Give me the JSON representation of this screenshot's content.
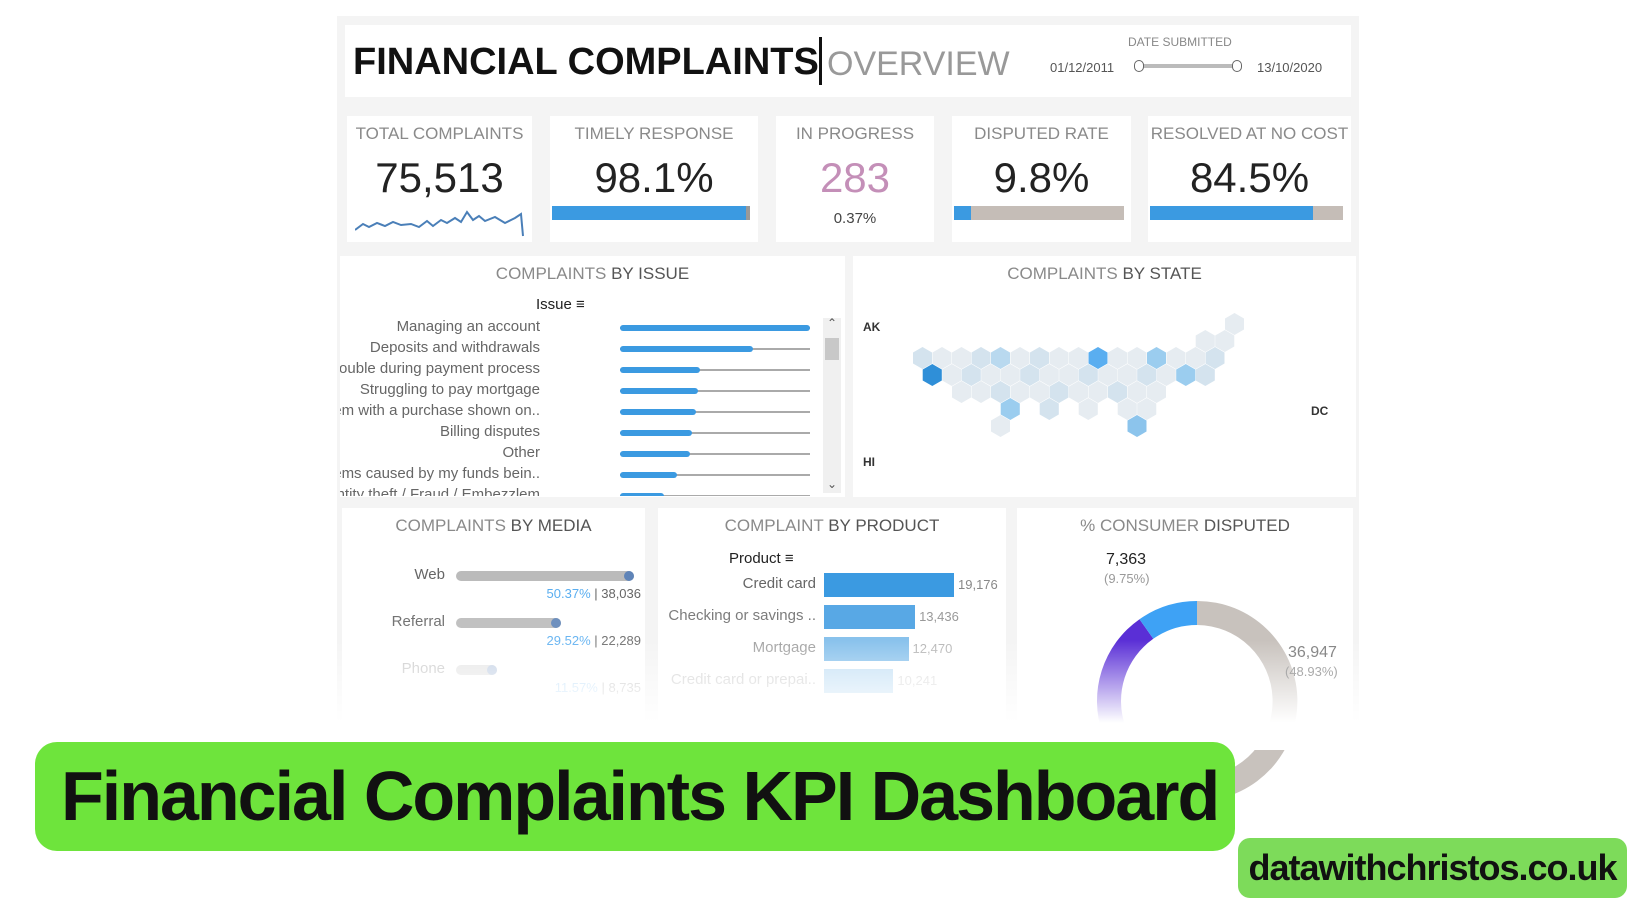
{
  "header": {
    "title": "FINANCIAL COMPLAINTS",
    "subtitle": "OVERVIEW",
    "date_filter": {
      "label": "DATE SUBMITTED",
      "start": "01/12/2011",
      "end": "13/10/2020"
    }
  },
  "kpis": [
    {
      "title": "TOTAL COMPLAINTS",
      "value": "75,513"
    },
    {
      "title": "TIMELY RESPONSE",
      "value": "98.1%",
      "bar_fraction": 0.981
    },
    {
      "title": "IN PROGRESS",
      "value": "283",
      "sub": "0.37%",
      "value_color": "#c48fb8"
    },
    {
      "title": "DISPUTED RATE",
      "value": "9.8%",
      "bar_fraction": 0.098
    },
    {
      "title": "RESOLVED AT NO COST",
      "value": "84.5%",
      "bar_fraction": 0.845
    }
  ],
  "issues": {
    "title_a": "COMPLAINTS",
    "title_b": "BY ISSUE",
    "header": "Issue",
    "rows": [
      {
        "label": "Managing an account",
        "fraction": 1.0
      },
      {
        "label": "Deposits and withdrawals",
        "fraction": 0.7
      },
      {
        "label": "Trouble during payment process",
        "fraction": 0.42
      },
      {
        "label": "Struggling to pay mortgage",
        "fraction": 0.41
      },
      {
        "label": "Problem with a purchase shown on..",
        "fraction": 0.4
      },
      {
        "label": "Billing disputes",
        "fraction": 0.38
      },
      {
        "label": "Other",
        "fraction": 0.37
      },
      {
        "label": "Problems caused by my funds bein..",
        "fraction": 0.3
      },
      {
        "label": "Identity theft / Fraud / Embezzlem",
        "fraction": 0.23
      }
    ]
  },
  "states": {
    "title_a": "COMPLAINTS",
    "title_b": "BY STATE",
    "labels": [
      "AK",
      "HI",
      "DC"
    ]
  },
  "media": {
    "title_a": "COMPLAINTS",
    "title_b": "BY MEDIA",
    "rows": [
      {
        "label": "Web",
        "pct": "50.37%",
        "count": "38,036",
        "fraction": 1.0
      },
      {
        "label": "Referral",
        "pct": "29.52%",
        "count": "22,289",
        "fraction": 0.59
      },
      {
        "label": "Phone",
        "pct": "11.57%",
        "count": "8,735",
        "fraction": 0.23
      }
    ]
  },
  "product": {
    "title_a": "COMPLAINT",
    "title_b": "BY PRODUCT",
    "header": "Product",
    "rows": [
      {
        "label": "Credit card",
        "value": "19,176",
        "num": 19176
      },
      {
        "label": "Checking or savings ..",
        "value": "13,436",
        "num": 13436
      },
      {
        "label": "Mortgage",
        "value": "12,470",
        "num": 12470
      },
      {
        "label": "Credit card or prepai..",
        "value": "10,241",
        "num": 10241
      }
    ]
  },
  "disputed": {
    "title_a": "% CONSUMER",
    "title_b": "DISPUTED",
    "a": {
      "value": "7,363",
      "pct": "(9.75%)",
      "fraction": 0.0975,
      "color": "#3ea2f5"
    },
    "b": {
      "value": "36,947",
      "pct": "(48.93%)",
      "fraction": 0.4893,
      "color": "#c8c2bd"
    },
    "rest_color": "#5a2fd6"
  },
  "banner": "Financial Complaints KPI Dashboard",
  "badge": "datawithchristos.co.uk",
  "colors": {
    "accent": "#3b9ae1",
    "banner": "#6ee43c",
    "badge": "#7ddb5a"
  }
}
